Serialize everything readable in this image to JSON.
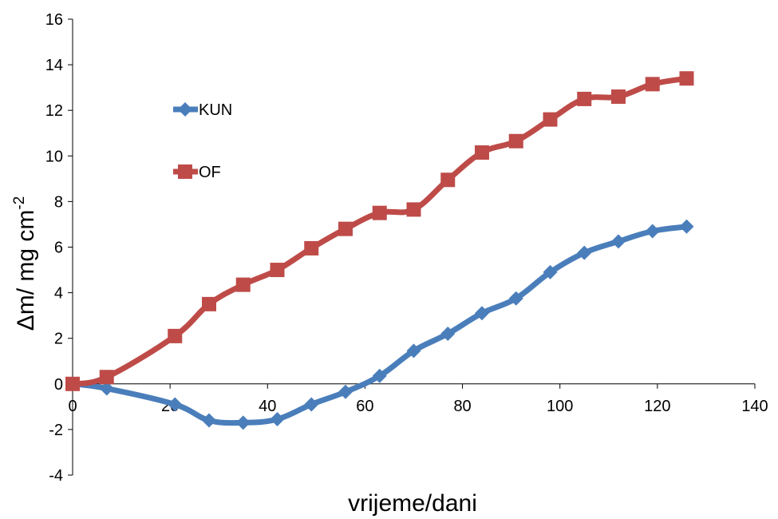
{
  "chart_data": {
    "type": "line",
    "title": "",
    "xlabel": "vrijeme/dani",
    "ylabel": "Δm/ mg cm",
    "ylabel_superscript": "-2",
    "xlim": [
      0,
      140
    ],
    "ylim": [
      -4,
      16
    ],
    "xticks": [
      0,
      20,
      40,
      60,
      80,
      100,
      120,
      140
    ],
    "yticks": [
      -4,
      -2,
      0,
      2,
      4,
      6,
      8,
      10,
      12,
      14,
      16
    ],
    "grid": false,
    "legend_position": "top-left",
    "series": [
      {
        "name": "KUN",
        "color": "#4a7ebb",
        "marker": "diamond",
        "x": [
          0,
          7,
          21,
          28,
          35,
          42,
          49,
          56,
          63,
          70,
          77,
          84,
          91,
          98,
          105,
          112,
          119,
          126
        ],
        "y": [
          0,
          -0.2,
          -0.9,
          -1.6,
          -1.7,
          -1.55,
          -0.9,
          -0.35,
          0.35,
          1.45,
          2.2,
          3.1,
          3.75,
          4.9,
          5.75,
          6.25,
          6.7,
          6.9
        ]
      },
      {
        "name": "OF",
        "color": "#be4b48",
        "marker": "square",
        "x": [
          0,
          7,
          21,
          28,
          35,
          42,
          49,
          56,
          63,
          70,
          77,
          84,
          91,
          98,
          105,
          112,
          119,
          126
        ],
        "y": [
          0,
          0.3,
          2.1,
          3.5,
          4.35,
          5.0,
          5.95,
          6.8,
          7.5,
          7.65,
          8.95,
          10.15,
          10.65,
          11.6,
          12.5,
          12.6,
          13.15,
          13.4
        ]
      }
    ]
  }
}
